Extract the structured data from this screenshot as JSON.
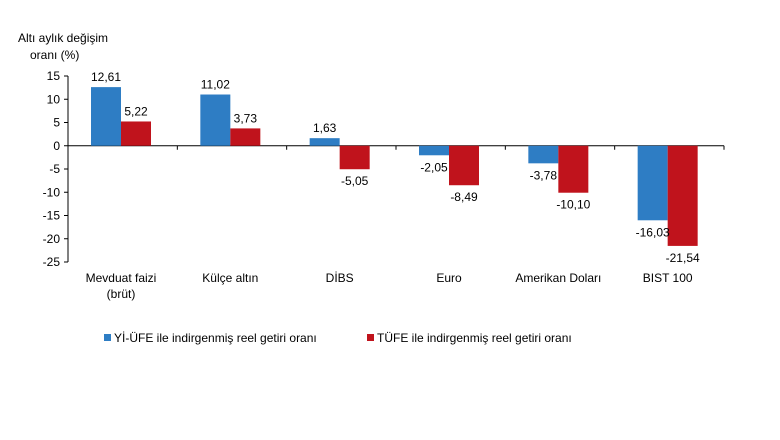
{
  "chart_data": {
    "type": "bar",
    "ylabel_lines": [
      "Altı aylık değişim",
      "oranı (%)"
    ],
    "categories": [
      [
        "Mevduat faizi",
        "(brüt)"
      ],
      [
        "Külçe altın"
      ],
      [
        "DİBS"
      ],
      [
        "Euro"
      ],
      [
        "Amerikan Doları"
      ],
      [
        "BIST 100"
      ]
    ],
    "series": [
      {
        "name": "Yİ-ÜFE ile indirgenmiş reel getiri oranı",
        "color": "#2e7dc4",
        "values": [
          12.61,
          11.02,
          1.63,
          -2.05,
          -3.78,
          -16.03
        ],
        "labels": [
          "12,61",
          "11,02",
          "1,63",
          "-2,05",
          "-3,78",
          "-16,03"
        ]
      },
      {
        "name": "TÜFE ile indirgenmiş reel getiri oranı",
        "color": "#c0131c",
        "values": [
          5.22,
          3.73,
          -5.05,
          -8.49,
          -10.1,
          -21.54
        ],
        "labels": [
          "5,22",
          "3,73",
          "-5,05",
          "-8,49",
          "-10,10",
          "-21,54"
        ]
      }
    ],
    "ylim": [
      -25,
      15
    ],
    "yticks": [
      15,
      10,
      5,
      0,
      -5,
      -10,
      -15,
      -20,
      -25
    ],
    "grid": false,
    "legend_position": "bottom"
  }
}
